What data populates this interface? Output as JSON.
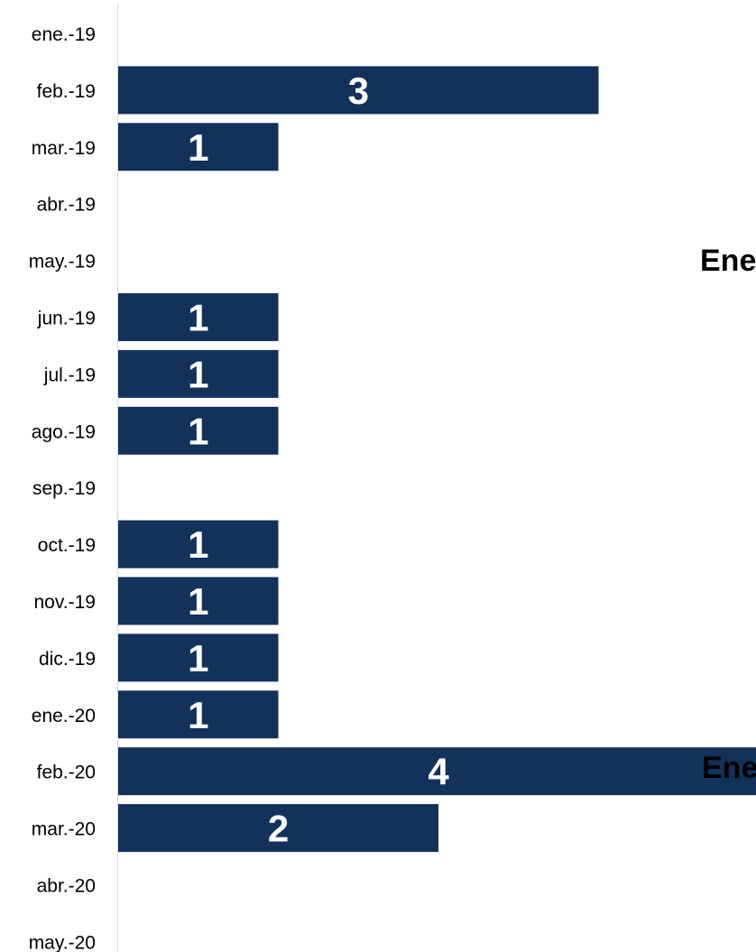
{
  "chart_data": {
    "type": "bar",
    "orientation": "horizontal",
    "categories": [
      "ene.-19",
      "feb.-19",
      "mar.-19",
      "abr.-19",
      "may.-19",
      "jun.-19",
      "jul.-19",
      "ago.-19",
      "sep.-19",
      "oct.-19",
      "nov.-19",
      "dic.-19",
      "ene.-20",
      "feb.-20",
      "mar.-20",
      "abr.-20",
      "may.-20"
    ],
    "values": [
      0,
      3,
      1,
      0,
      0,
      1,
      1,
      1,
      0,
      1,
      1,
      1,
      1,
      4,
      2,
      0,
      0
    ],
    "xlim": [
      0,
      4
    ],
    "grid": false,
    "legend": "none",
    "bar_color": "#12325b",
    "axis_color": "#d9d9d9",
    "annotations": [
      "Ene",
      "Ene"
    ]
  }
}
